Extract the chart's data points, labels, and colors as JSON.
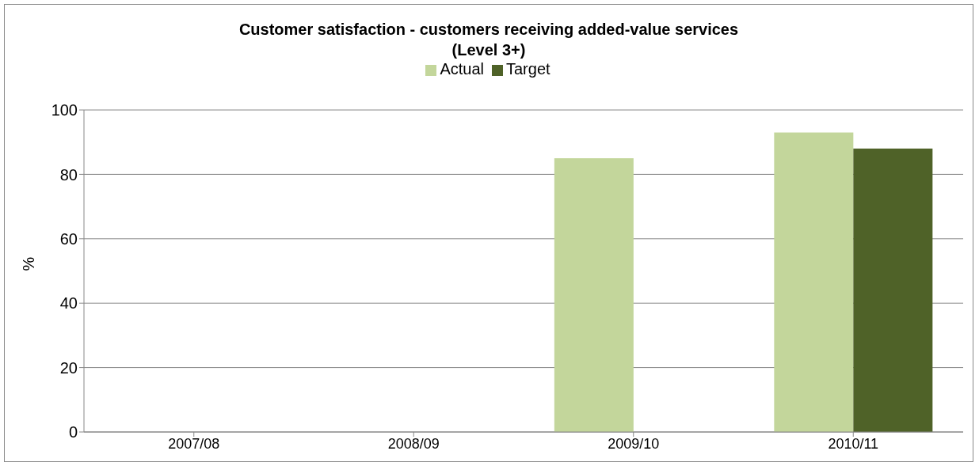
{
  "chart_data": {
    "type": "bar",
    "title": "Customer satisfaction - customers receiving added-value services\n(Level 3+)",
    "ylabel": "%",
    "categories": [
      "2007/08",
      "2008/09",
      "2009/10",
      "2010/11"
    ],
    "series": [
      {
        "name": "Actual",
        "color": "#c3d69b",
        "values": [
          null,
          null,
          85,
          93
        ]
      },
      {
        "name": "Target",
        "color": "#4f6228",
        "values": [
          null,
          null,
          null,
          88
        ]
      }
    ],
    "ylim": [
      0,
      100
    ],
    "yticks": [
      0,
      20,
      40,
      60,
      80,
      100
    ],
    "grid": "y",
    "legend": "top"
  }
}
